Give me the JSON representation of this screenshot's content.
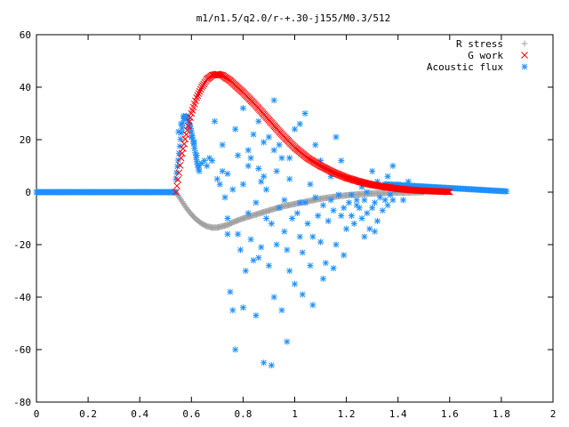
{
  "chart_data": {
    "type": "scatter",
    "title": "m1/n1.5/q2.0/r-+.30-j155/M0.3/512",
    "xlabel": "",
    "ylabel": "",
    "xlim": [
      0,
      2
    ],
    "ylim": [
      -80,
      60
    ],
    "xticks": [
      0,
      0.2,
      0.4,
      0.6,
      0.8,
      1,
      1.2,
      1.4,
      1.6,
      1.8,
      2
    ],
    "yticks": [
      -80,
      -60,
      -40,
      -20,
      0,
      20,
      40,
      60
    ],
    "xtick_labels": [
      "0",
      "0.2",
      "0.4",
      "0.6",
      "0.8",
      "1",
      "1.2",
      "1.4",
      "1.6",
      "1.8",
      "2"
    ],
    "ytick_labels": [
      "-80",
      "-60",
      "-40",
      "-20",
      "0",
      "20",
      "40",
      "60"
    ],
    "grid": false,
    "legend_position": "top-right",
    "series": [
      {
        "name": "R stress",
        "marker": "plus",
        "color": "#a0a0a0",
        "curve": [
          [
            0.54,
            0
          ],
          [
            0.56,
            -3
          ],
          [
            0.58,
            -6
          ],
          [
            0.6,
            -8.5
          ],
          [
            0.62,
            -10.5
          ],
          [
            0.64,
            -12
          ],
          [
            0.66,
            -13
          ],
          [
            0.68,
            -13.5
          ],
          [
            0.7,
            -13.5
          ],
          [
            0.72,
            -13
          ],
          [
            0.74,
            -12.5
          ],
          [
            0.76,
            -11.5
          ],
          [
            0.8,
            -10
          ],
          [
            0.85,
            -8.5
          ],
          [
            0.9,
            -7
          ],
          [
            0.95,
            -5.5
          ],
          [
            1.0,
            -4.5
          ],
          [
            1.05,
            -3.5
          ],
          [
            1.1,
            -2.5
          ],
          [
            1.15,
            -1.8
          ],
          [
            1.2,
            -1.2
          ],
          [
            1.25,
            -0.8
          ],
          [
            1.3,
            -0.5
          ],
          [
            1.35,
            -0.3
          ],
          [
            1.4,
            -0.2
          ],
          [
            1.45,
            -0.1
          ],
          [
            1.5,
            0
          ]
        ],
        "step": 0.004
      },
      {
        "name": "G work",
        "marker": "cross",
        "color": "#ff0000",
        "curve": [
          [
            0.54,
            0
          ],
          [
            0.55,
            6
          ],
          [
            0.56,
            13
          ],
          [
            0.58,
            22
          ],
          [
            0.6,
            30
          ],
          [
            0.62,
            36
          ],
          [
            0.64,
            40
          ],
          [
            0.66,
            43
          ],
          [
            0.68,
            44.5
          ],
          [
            0.7,
            45
          ],
          [
            0.72,
            44.5
          ],
          [
            0.75,
            42.5
          ],
          [
            0.8,
            38
          ],
          [
            0.85,
            33
          ],
          [
            0.9,
            27.5
          ],
          [
            0.95,
            22
          ],
          [
            1.0,
            17
          ],
          [
            1.05,
            13
          ],
          [
            1.1,
            10
          ],
          [
            1.15,
            7.5
          ],
          [
            1.2,
            5.5
          ],
          [
            1.25,
            4
          ],
          [
            1.3,
            2.8
          ],
          [
            1.35,
            2
          ],
          [
            1.4,
            1.3
          ],
          [
            1.45,
            0.8
          ],
          [
            1.5,
            0.5
          ],
          [
            1.55,
            0.3
          ],
          [
            1.6,
            0.1
          ]
        ],
        "step": 0.004
      },
      {
        "name": "Acoustic flux",
        "marker": "star",
        "color": "#1e90ff",
        "baseline_left": {
          "x_start": 0,
          "x_end": 0.54,
          "y": 0,
          "step": 0.0035
        },
        "rising_branch": [
          [
            0.54,
            5
          ],
          [
            0.55,
            13
          ],
          [
            0.56,
            22
          ],
          [
            0.57,
            28
          ],
          [
            0.58,
            29
          ],
          [
            0.59,
            27
          ],
          [
            0.6,
            23
          ],
          [
            0.61,
            18
          ],
          [
            0.62,
            12
          ],
          [
            0.63,
            8
          ]
        ],
        "baseline_right": {
          "x_start": 1.35,
          "x_end": 1.82,
          "y_start": 3,
          "y_end": 0.3,
          "step": 0.005
        },
        "points": [
          [
            0.55,
            23
          ],
          [
            0.56,
            26
          ],
          [
            0.57,
            29
          ],
          [
            0.58,
            29
          ],
          [
            0.59,
            25
          ],
          [
            0.6,
            21
          ],
          [
            0.61,
            19
          ],
          [
            0.62,
            14
          ],
          [
            0.63,
            10
          ],
          [
            0.64,
            11
          ],
          [
            0.65,
            12
          ],
          [
            0.66,
            10
          ],
          [
            0.67,
            13
          ],
          [
            0.68,
            12
          ],
          [
            0.69,
            27
          ],
          [
            0.7,
            5
          ],
          [
            0.71,
            3
          ],
          [
            0.72,
            8
          ],
          [
            0.73,
            -2
          ],
          [
            0.74,
            -10
          ],
          [
            0.74,
            -16
          ],
          [
            0.75,
            -38
          ],
          [
            0.76,
            -45
          ],
          [
            0.77,
            -60
          ],
          [
            0.78,
            -16
          ],
          [
            0.79,
            -22
          ],
          [
            0.8,
            -44
          ],
          [
            0.81,
            -30
          ],
          [
            0.82,
            -8
          ],
          [
            0.83,
            -18
          ],
          [
            0.84,
            -26
          ],
          [
            0.85,
            -47
          ],
          [
            0.86,
            -25
          ],
          [
            0.87,
            -21
          ],
          [
            0.88,
            -65
          ],
          [
            0.89,
            -10
          ],
          [
            0.9,
            -28
          ],
          [
            0.91,
            -66
          ],
          [
            0.92,
            -40
          ],
          [
            0.93,
            -20
          ],
          [
            0.94,
            -6
          ],
          [
            0.95,
            -45
          ],
          [
            0.96,
            -15
          ],
          [
            0.97,
            -57
          ],
          [
            0.98,
            -30
          ],
          [
            0.99,
            -10
          ],
          [
            1.0,
            -35
          ],
          [
            1.01,
            -8
          ],
          [
            1.02,
            -17
          ],
          [
            1.03,
            -23
          ],
          [
            1.04,
            -4
          ],
          [
            1.05,
            -12
          ],
          [
            1.06,
            -28
          ],
          [
            1.07,
            -17
          ],
          [
            1.08,
            -2
          ],
          [
            1.09,
            -9
          ],
          [
            1.1,
            -19
          ],
          [
            1.11,
            -5
          ],
          [
            1.12,
            -27
          ],
          [
            1.13,
            -11
          ],
          [
            1.14,
            -3
          ],
          [
            1.15,
            -7
          ],
          [
            1.16,
            -20
          ],
          [
            1.17,
            -1
          ],
          [
            1.18,
            -9
          ],
          [
            1.19,
            -6
          ],
          [
            1.2,
            -14
          ],
          [
            1.21,
            -4
          ],
          [
            1.22,
            -9
          ],
          [
            1.23,
            -12
          ],
          [
            1.24,
            -5
          ],
          [
            1.25,
            -6
          ],
          [
            1.26,
            -10
          ],
          [
            1.27,
            -3
          ],
          [
            1.28,
            -8
          ],
          [
            1.29,
            -14
          ],
          [
            1.3,
            -6
          ],
          [
            1.31,
            -4
          ],
          [
            1.32,
            -11
          ],
          [
            1.33,
            -2
          ],
          [
            1.34,
            -7
          ],
          [
            1.35,
            -3
          ],
          [
            1.36,
            -5
          ],
          [
            1.37,
            -1
          ],
          [
            1.38,
            -3
          ],
          [
            1.39,
            1
          ],
          [
            0.74,
            7
          ],
          [
            0.76,
            1
          ],
          [
            0.78,
            14
          ],
          [
            0.8,
            3
          ],
          [
            0.82,
            16
          ],
          [
            0.83,
            13
          ],
          [
            0.85,
            -4
          ],
          [
            0.86,
            9
          ],
          [
            0.88,
            6
          ],
          [
            0.89,
            1
          ],
          [
            0.9,
            21
          ],
          [
            0.92,
            16
          ],
          [
            0.93,
            8
          ],
          [
            0.95,
            13
          ],
          [
            0.96,
            -3
          ],
          [
            0.98,
            5
          ],
          [
            1.0,
            24
          ],
          [
            1.02,
            -4
          ],
          [
            1.04,
            30
          ],
          [
            1.06,
            3
          ],
          [
            1.1,
            12
          ],
          [
            1.12,
            9
          ],
          [
            1.14,
            6
          ],
          [
            1.18,
            12
          ],
          [
            1.22,
            -1
          ],
          [
            1.24,
            -3
          ],
          [
            1.26,
            2
          ],
          [
            1.28,
            0
          ],
          [
            1.3,
            8
          ],
          [
            1.32,
            4
          ],
          [
            1.34,
            2
          ],
          [
            1.36,
            6
          ],
          [
            1.38,
            10
          ],
          [
            1.4,
            3
          ],
          [
            1.42,
            -3
          ],
          [
            1.44,
            4
          ],
          [
            1.46,
            1
          ],
          [
            0.8,
            32
          ],
          [
            0.84,
            22
          ],
          [
            0.86,
            27
          ],
          [
            0.88,
            19
          ],
          [
            0.92,
            35
          ],
          [
            0.94,
            18
          ],
          [
            0.98,
            13
          ],
          [
            1.02,
            26
          ],
          [
            1.08,
            18
          ],
          [
            1.16,
            21
          ],
          [
            0.72,
            18
          ],
          [
            0.77,
            24
          ],
          [
            0.82,
            10
          ],
          [
            0.87,
            4
          ],
          [
            0.91,
            -12
          ],
          [
            0.97,
            -22
          ],
          [
            1.03,
            -39
          ],
          [
            1.07,
            -43
          ],
          [
            1.11,
            -33
          ],
          [
            1.15,
            -29
          ],
          [
            1.19,
            -24
          ],
          [
            1.27,
            -17
          ],
          [
            1.31,
            -15
          ]
        ]
      }
    ]
  }
}
